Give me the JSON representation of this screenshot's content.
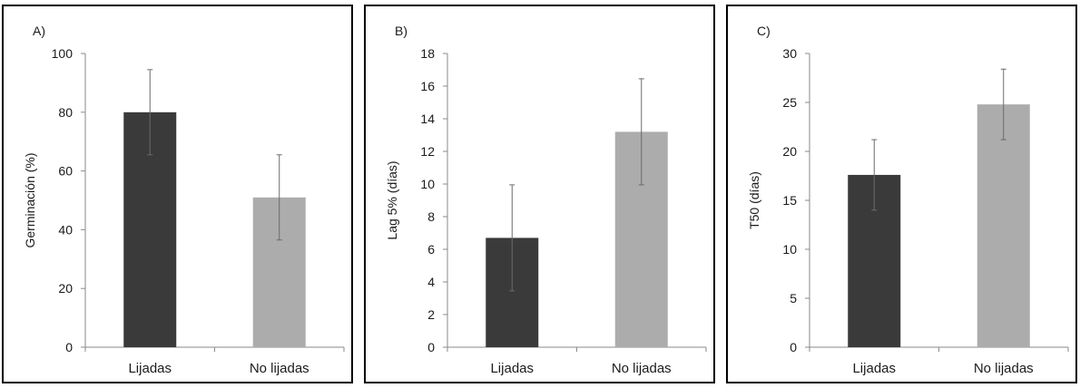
{
  "colors": {
    "dark": "#3a3a3a",
    "light": "#acacac",
    "axis": "#8a8a8a",
    "error": "#6a6a6a"
  },
  "chart_data": [
    {
      "panel": "A)",
      "type": "bar",
      "ylabel": "Germinación (%)",
      "ylim": [
        0,
        100
      ],
      "yticks": [
        "0",
        "20",
        "40",
        "60",
        "80",
        "100"
      ],
      "categories": [
        "Lijadas",
        "No lijadas"
      ],
      "values": [
        80,
        51
      ],
      "errors": [
        14.5,
        14.5
      ]
    },
    {
      "panel": "B)",
      "type": "bar",
      "ylabel": "Lag 5% (días)",
      "ylim": [
        0,
        18
      ],
      "yticks": [
        "0",
        "2",
        "4",
        "6",
        "8",
        "10",
        "12",
        "14",
        "16",
        "18"
      ],
      "categories": [
        "Lijadas",
        "No lijadas"
      ],
      "values": [
        6.7,
        13.2
      ],
      "errors": [
        3.25,
        3.25
      ]
    },
    {
      "panel": "C)",
      "type": "bar",
      "ylabel": "T50 (días)",
      "ylim": [
        0,
        30
      ],
      "yticks": [
        "0",
        "5",
        "10",
        "15",
        "20",
        "25",
        "30"
      ],
      "categories": [
        "Lijadas",
        "No lijadas"
      ],
      "values": [
        17.6,
        24.8
      ],
      "errors": [
        3.6,
        3.6
      ]
    }
  ]
}
